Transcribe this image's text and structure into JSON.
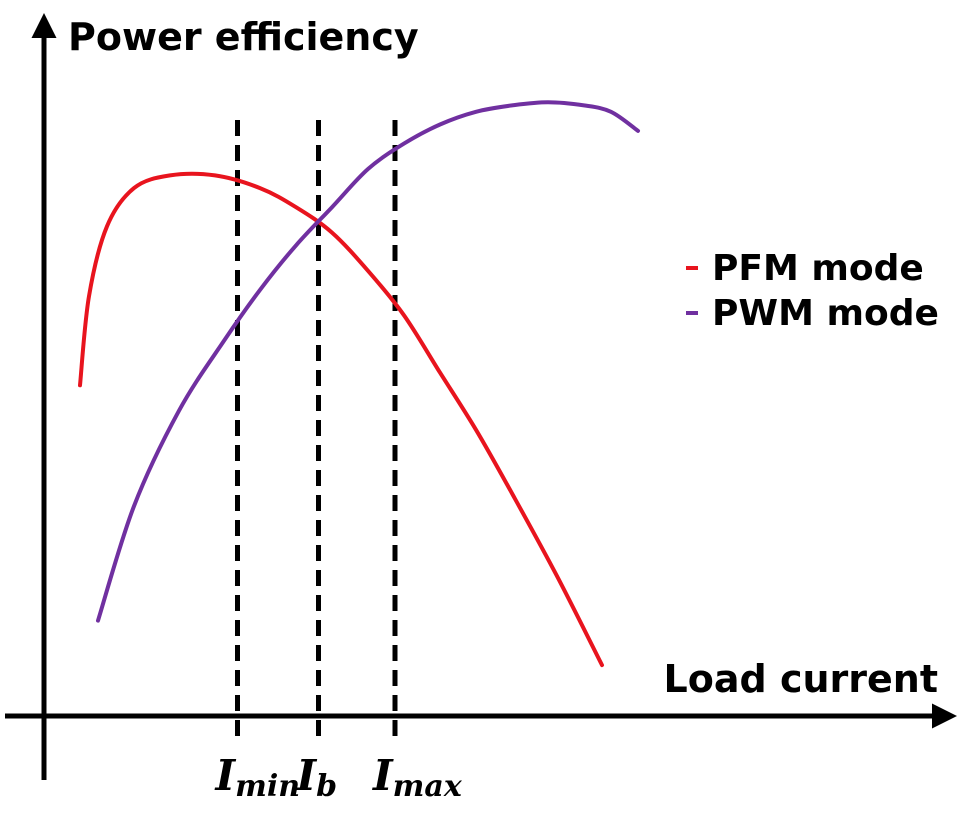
{
  "chart_data": {
    "type": "line",
    "ylabel": "Power efficiency",
    "xlabel": "Load current",
    "xlim": [
      0,
      100
    ],
    "ylim": [
      0,
      100
    ],
    "ticks": false,
    "grid": false,
    "legend_position": "right",
    "series": [
      {
        "name": "PFM mode",
        "color": "#e8141e",
        "x": [
          4,
          5,
          7,
          10,
          14,
          19,
          24,
          28,
          32,
          36,
          40,
          44,
          48,
          52,
          57,
          62
        ],
        "y": [
          52,
          66,
          77,
          83,
          85,
          85,
          83,
          80,
          76,
          70,
          63,
          54,
          45,
          35,
          22,
          8
        ]
      },
      {
        "name": "PWM mode",
        "color": "#7030a0",
        "x": [
          6,
          10,
          15,
          20,
          24,
          28,
          32,
          36,
          40,
          44,
          48,
          52,
          56,
          60,
          63,
          66
        ],
        "y": [
          15,
          33,
          48,
          59,
          67,
          74,
          80,
          86,
          90,
          93,
          95,
          96,
          96.5,
          96,
          95,
          92
        ]
      }
    ],
    "markers": [
      {
        "main": "I",
        "sub": "min",
        "x": 21.5
      },
      {
        "main": "I",
        "sub": "b",
        "x": 30.5
      },
      {
        "main": "I",
        "sub": "max",
        "x": 39
      }
    ]
  }
}
